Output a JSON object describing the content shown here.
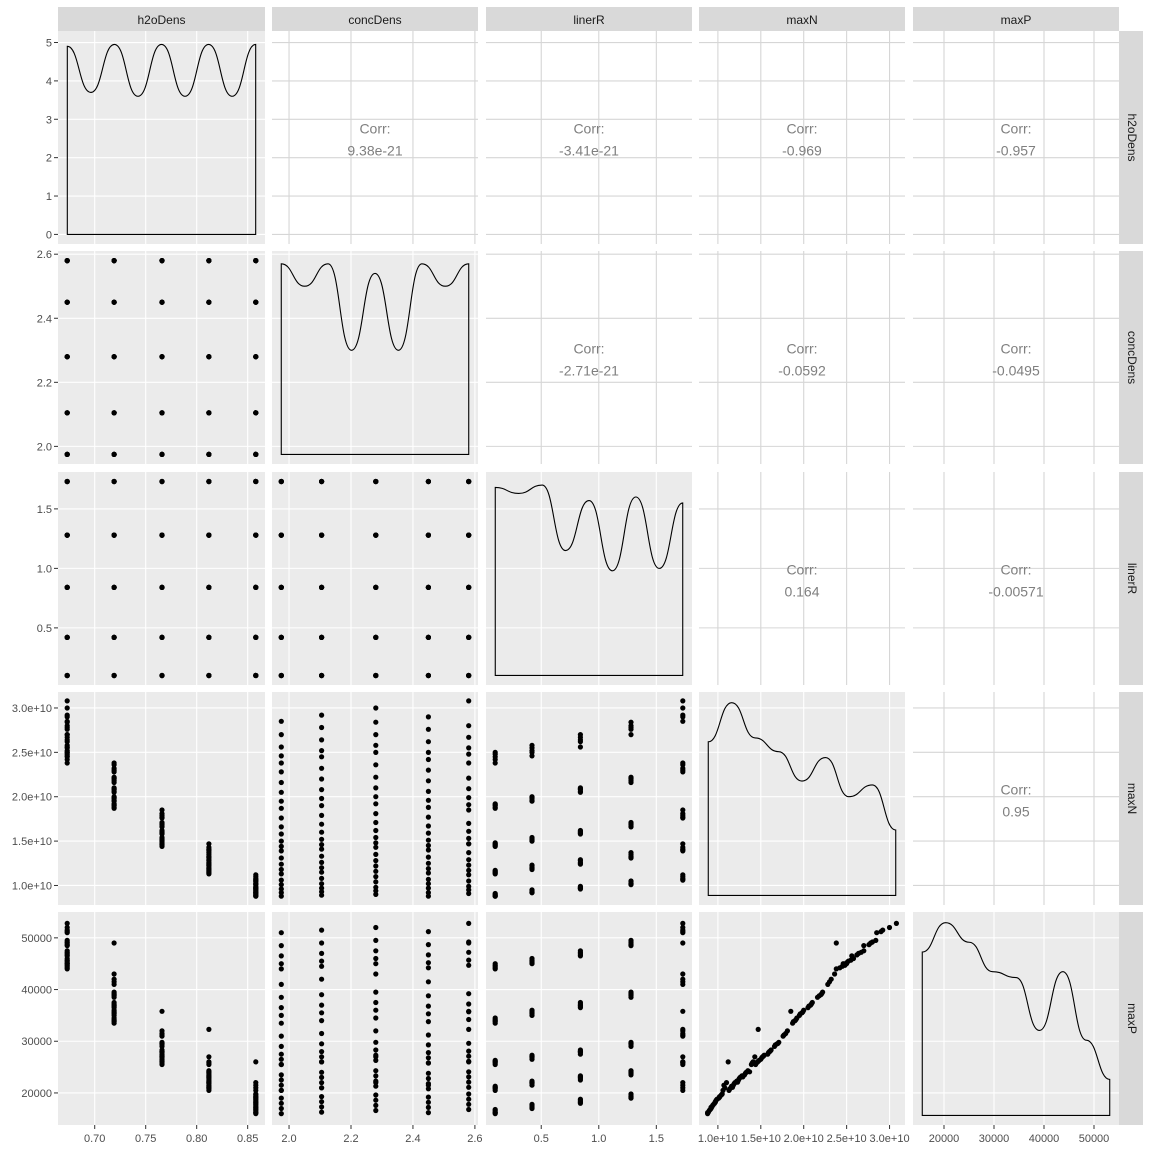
{
  "chart_data": {
    "type": "scatter",
    "variables": [
      "h2oDens",
      "concDens",
      "linerR",
      "maxN",
      "maxP"
    ],
    "grid": true,
    "x_tick_labels": [
      [
        "0.70",
        "0.75",
        "0.80",
        "0.85"
      ],
      [
        "2.0",
        "2.2",
        "2.4",
        "2.6"
      ],
      [
        "0.5",
        "1.0",
        "1.5"
      ],
      [
        "1.0e+10",
        "1.5e+10",
        "2.0e+10",
        "2.5e+10",
        "3.0e+10"
      ],
      [
        "20000",
        "30000",
        "40000",
        "50000"
      ]
    ],
    "y_tick_labels": [
      [
        "0",
        "1",
        "2",
        "3",
        "4",
        "5"
      ],
      [
        "2.0",
        "2.2",
        "2.4",
        "2.6"
      ],
      [
        "0.5",
        "1.0",
        "1.5"
      ],
      [
        "1.0e+10",
        "1.5e+10",
        "2.0e+10",
        "2.5e+10",
        "3.0e+10"
      ],
      [
        "20000",
        "30000",
        "40000",
        "50000"
      ]
    ],
    "correlation_label": "Corr:",
    "correlations": [
      {
        "row": 0,
        "col": 1,
        "value": "9.38e-21"
      },
      {
        "row": 0,
        "col": 2,
        "value": "-3.41e-21"
      },
      {
        "row": 0,
        "col": 3,
        "value": "-0.969"
      },
      {
        "row": 0,
        "col": 4,
        "value": "-0.957"
      },
      {
        "row": 1,
        "col": 2,
        "value": "-2.71e-21"
      },
      {
        "row": 1,
        "col": 3,
        "value": "-0.0592"
      },
      {
        "row": 1,
        "col": 4,
        "value": "-0.0495"
      },
      {
        "row": 2,
        "col": 3,
        "value": "0.164"
      },
      {
        "row": 2,
        "col": 4,
        "value": "-0.00571"
      },
      {
        "row": 3,
        "col": 4,
        "value": "0.95"
      }
    ],
    "densities": [
      {
        "var": "h2oDens",
        "y": [
          4.9,
          3.7,
          4.95,
          3.6,
          4.95,
          3.6,
          4.95,
          3.6,
          4.95
        ]
      },
      {
        "var": "concDens",
        "y": [
          2.57,
          2.5,
          2.57,
          2.3,
          2.54,
          2.3,
          2.57,
          2.5,
          2.57
        ]
      },
      {
        "var": "linerR",
        "y": [
          1.68,
          1.63,
          1.7,
          1.15,
          1.57,
          0.98,
          1.6,
          1.0,
          1.55
        ]
      },
      {
        "var": "maxN",
        "y": [
          0.8,
          1.0,
          0.82,
          0.75,
          0.6,
          0.72,
          0.52,
          0.58,
          0.35
        ]
      },
      {
        "var": "maxP",
        "y": [
          0.85,
          1.0,
          0.9,
          0.75,
          0.72,
          0.45,
          0.75,
          0.4,
          0.2
        ]
      }
    ],
    "points": {
      "h2oDens": [
        0.673,
        0.673,
        0.673,
        0.673,
        0.673,
        0.673,
        0.673,
        0.673,
        0.673,
        0.673,
        0.673,
        0.673,
        0.673,
        0.673,
        0.673,
        0.673,
        0.673,
        0.673,
        0.673,
        0.673,
        0.673,
        0.673,
        0.673,
        0.673,
        0.673,
        0.719,
        0.719,
        0.719,
        0.719,
        0.719,
        0.719,
        0.719,
        0.719,
        0.719,
        0.719,
        0.719,
        0.719,
        0.719,
        0.719,
        0.719,
        0.719,
        0.719,
        0.719,
        0.719,
        0.719,
        0.719,
        0.719,
        0.719,
        0.719,
        0.719,
        0.766,
        0.766,
        0.766,
        0.766,
        0.766,
        0.766,
        0.766,
        0.766,
        0.766,
        0.766,
        0.766,
        0.766,
        0.766,
        0.766,
        0.766,
        0.766,
        0.766,
        0.766,
        0.766,
        0.766,
        0.766,
        0.766,
        0.766,
        0.766,
        0.766,
        0.812,
        0.812,
        0.812,
        0.812,
        0.812,
        0.812,
        0.812,
        0.812,
        0.812,
        0.812,
        0.812,
        0.812,
        0.812,
        0.812,
        0.812,
        0.812,
        0.812,
        0.812,
        0.812,
        0.812,
        0.812,
        0.812,
        0.812,
        0.812,
        0.812,
        0.858,
        0.858,
        0.858,
        0.858,
        0.858,
        0.858,
        0.858,
        0.858,
        0.858,
        0.858,
        0.858,
        0.858,
        0.858,
        0.858,
        0.858,
        0.858,
        0.858,
        0.858,
        0.858,
        0.858,
        0.858,
        0.858,
        0.858,
        0.858,
        0.858
      ],
      "concDens": [
        1.975,
        1.975,
        1.975,
        1.975,
        1.975,
        2.105,
        2.105,
        2.105,
        2.105,
        2.105,
        2.28,
        2.28,
        2.28,
        2.28,
        2.28,
        2.45,
        2.45,
        2.45,
        2.45,
        2.45,
        2.58,
        2.58,
        2.58,
        2.58,
        2.58,
        1.975,
        1.975,
        1.975,
        1.975,
        1.975,
        2.105,
        2.105,
        2.105,
        2.105,
        2.105,
        2.28,
        2.28,
        2.28,
        2.28,
        2.28,
        2.45,
        2.45,
        2.45,
        2.45,
        2.45,
        2.58,
        2.58,
        2.58,
        2.58,
        2.58,
        1.975,
        1.975,
        1.975,
        1.975,
        1.975,
        2.105,
        2.105,
        2.105,
        2.105,
        2.105,
        2.28,
        2.28,
        2.28,
        2.28,
        2.28,
        2.45,
        2.45,
        2.45,
        2.45,
        2.45,
        2.58,
        2.58,
        2.58,
        2.58,
        2.58,
        1.975,
        1.975,
        1.975,
        1.975,
        1.975,
        2.105,
        2.105,
        2.105,
        2.105,
        2.105,
        2.28,
        2.28,
        2.28,
        2.28,
        2.28,
        2.45,
        2.45,
        2.45,
        2.45,
        2.45,
        2.58,
        2.58,
        2.58,
        2.58,
        2.58,
        1.975,
        1.975,
        1.975,
        1.975,
        1.975,
        2.105,
        2.105,
        2.105,
        2.105,
        2.105,
        2.28,
        2.28,
        2.28,
        2.28,
        2.28,
        2.45,
        2.45,
        2.45,
        2.45,
        2.45,
        2.58,
        2.58,
        2.58,
        2.58,
        2.58
      ],
      "linerR": [
        0.1,
        0.42,
        0.84,
        1.28,
        1.73,
        0.1,
        0.42,
        0.84,
        1.28,
        1.73,
        0.1,
        0.42,
        0.84,
        1.28,
        1.73,
        0.1,
        0.42,
        0.84,
        1.28,
        1.73,
        0.1,
        0.42,
        0.84,
        1.28,
        1.73,
        0.1,
        0.42,
        0.84,
        1.28,
        1.73,
        0.1,
        0.42,
        0.84,
        1.28,
        1.73,
        0.1,
        0.42,
        0.84,
        1.28,
        1.73,
        0.1,
        0.42,
        0.84,
        1.28,
        1.73,
        0.1,
        0.42,
        0.84,
        1.28,
        1.73,
        0.1,
        0.42,
        0.84,
        1.28,
        1.73,
        0.1,
        0.42,
        0.84,
        1.28,
        1.73,
        0.1,
        0.42,
        0.84,
        1.28,
        1.73,
        0.1,
        0.42,
        0.84,
        1.28,
        1.73,
        0.1,
        0.42,
        0.84,
        1.28,
        1.73,
        0.1,
        0.42,
        0.84,
        1.28,
        1.73,
        0.1,
        0.42,
        0.84,
        1.28,
        1.73,
        0.1,
        0.42,
        0.84,
        1.28,
        1.73,
        0.1,
        0.42,
        0.84,
        1.28,
        1.73,
        0.1,
        0.42,
        0.84,
        1.28,
        1.73,
        0.1,
        0.42,
        0.84,
        1.28,
        1.73,
        0.1,
        0.42,
        0.84,
        1.28,
        1.73,
        0.1,
        0.42,
        0.84,
        1.28,
        1.73,
        0.1,
        0.42,
        0.84,
        1.28,
        1.73,
        0.1,
        0.42,
        0.84,
        1.28,
        1.73
      ],
      "maxN": [
        23800000000.0,
        24600000000.0,
        25600000000.0,
        27000000000.0,
        28500000000.0,
        24500000000.0,
        25200000000.0,
        26400000000.0,
        27800000000.0,
        29200000000.0,
        25000000000.0,
        25800000000.0,
        27000000000.0,
        28400000000.0,
        30000000000.0,
        24200000000.0,
        25000000000.0,
        26200000000.0,
        27600000000.0,
        29000000000.0,
        24800000000.0,
        25500000000.0,
        26700000000.0,
        28000000000.0,
        30800000000.0,
        18700000000.0,
        19500000000.0,
        20500000000.0,
        21600000000.0,
        22800000000.0,
        19000000000.0,
        19800000000.0,
        20800000000.0,
        22000000000.0,
        23200000000.0,
        19200000000.0,
        20000000000.0,
        21000000000.0,
        22200000000.0,
        23600000000.0,
        18800000000.0,
        19600000000.0,
        20600000000.0,
        21800000000.0,
        23000000000.0,
        19100000000.0,
        19900000000.0,
        20900000000.0,
        22100000000.0,
        23800000000.0,
        14400000000.0,
        15000000000.0,
        15800000000.0,
        16600000000.0,
        17600000000.0,
        14600000000.0,
        15200000000.0,
        16000000000.0,
        16900000000.0,
        17900000000.0,
        14800000000.0,
        15400000000.0,
        16200000000.0,
        17100000000.0,
        18100000000.0,
        14500000000.0,
        15100000000.0,
        15900000000.0,
        16700000000.0,
        17700000000.0,
        14700000000.0,
        15300000000.0,
        16100000000.0,
        17000000000.0,
        18500000000.0,
        11300000000.0,
        11800000000.0,
        12400000000.0,
        13100000000.0,
        13900000000.0,
        11500000000.0,
        12000000000.0,
        12600000000.0,
        13300000000.0,
        14100000000.0,
        11600000000.0,
        12200000000.0,
        12800000000.0,
        13500000000.0,
        14300000000.0,
        11400000000.0,
        11900000000.0,
        12500000000.0,
        13200000000.0,
        14000000000.0,
        11700000000.0,
        12300000000.0,
        12900000000.0,
        13700000000.0,
        14700000000.0,
        8800000000.0,
        9200000000.0,
        9600000000.0,
        10100000000.0,
        10600000000.0,
        8900000000.0,
        9300000000.0,
        9700000000.0,
        10200000000.0,
        10800000000.0,
        9000000000.0,
        9400000000.0,
        9800000000.0,
        10400000000.0,
        11000000000.0,
        8800000000.0,
        9200000000.0,
        9700000000.0,
        10200000000.0,
        10700000000.0,
        9100000000.0,
        9500000000.0,
        9900000000.0,
        10500000000.0,
        11200000000.0
      ],
      "maxP": [
        44000,
        45000,
        46500,
        48500,
        51000,
        44500,
        45500,
        47000,
        49000,
        51500,
        45000,
        46000,
        47500,
        49500,
        52000,
        44200,
        45200,
        46700,
        48700,
        51200,
        44700,
        45700,
        47200,
        49200,
        52800,
        33500,
        35000,
        36500,
        38500,
        41000,
        34000,
        35500,
        37000,
        39000,
        42000,
        34500,
        36000,
        37500,
        39500,
        43000,
        33800,
        35300,
        36800,
        38800,
        41500,
        34200,
        35700,
        37200,
        39200,
        49000,
        25500,
        26500,
        27500,
        29000,
        31000,
        26000,
        27000,
        28000,
        29500,
        31500,
        26300,
        27300,
        28300,
        29800,
        32000,
        25800,
        26800,
        27800,
        29300,
        31200,
        26100,
        27100,
        28100,
        29600,
        35800,
        20500,
        21500,
        22500,
        23500,
        25500,
        21000,
        22000,
        23000,
        24000,
        26000,
        21300,
        22300,
        23300,
        24300,
        27000,
        20800,
        21800,
        22800,
        23800,
        25800,
        21100,
        22100,
        23100,
        24100,
        32300,
        16000,
        17000,
        18000,
        19000,
        20500,
        16300,
        17300,
        18300,
        19300,
        21000,
        16600,
        17600,
        18600,
        19600,
        22000,
        16200,
        17200,
        18200,
        19200,
        21500,
        16800,
        17800,
        18800,
        19800,
        26000
      ]
    }
  }
}
